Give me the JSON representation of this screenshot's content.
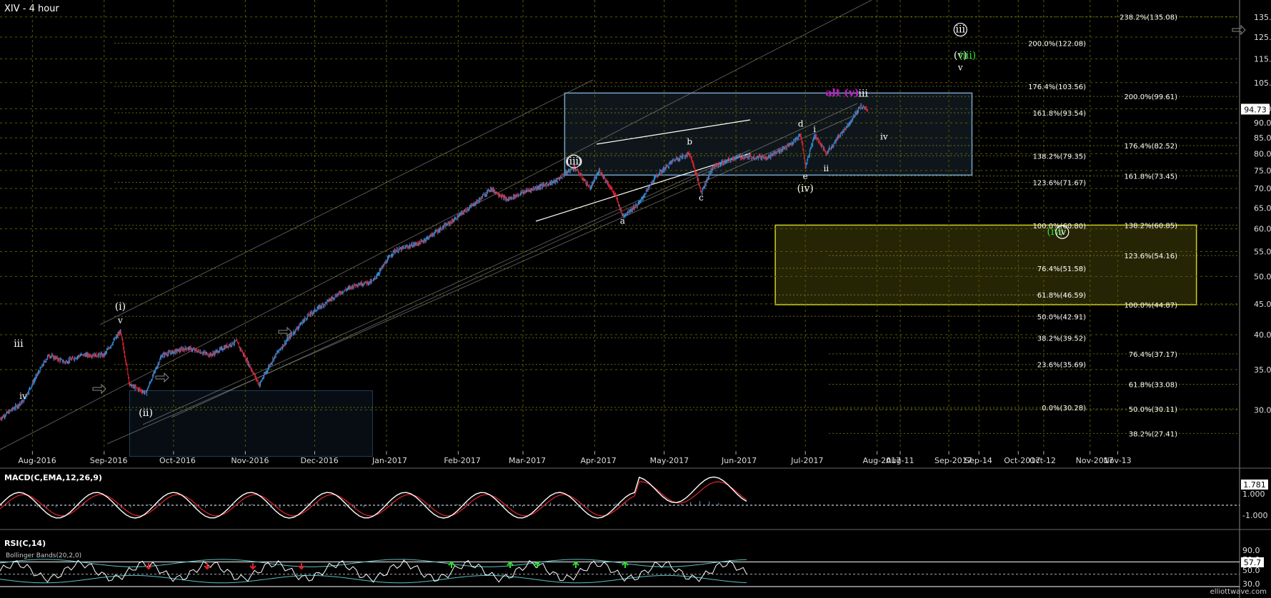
{
  "title": "XIV - 4 hour",
  "watermark": "elliottwave.com",
  "chart_data": [
    {
      "type": "candlestick",
      "title": "XIV - 4 hour",
      "y_axis": {
        "range": [
          22,
          140
        ],
        "ticks": [
          30,
          35,
          40,
          45,
          50,
          55,
          60,
          65,
          70,
          75,
          80,
          85,
          90,
          95,
          105,
          115,
          125,
          135
        ],
        "position": "right"
      },
      "x_axis": {
        "ticks": [
          "Aug-2016",
          "Sep-2016",
          "Oct-2016",
          "Nov-2016",
          "Dec-2016",
          "Jan-2017",
          "Feb-2017",
          "Mar-2017",
          "Apr-2017",
          "May-2017",
          "Jun-2017",
          "Jul-2017",
          "Aug-2017",
          "Aug-11",
          "Sep-2017",
          "Sep-14",
          "Oct-2017",
          "Oct-12",
          "Nov-2017",
          "Nov-13"
        ]
      },
      "price_path": [
        [
          "2016-07-18",
          29
        ],
        [
          "2016-07-28",
          31
        ],
        [
          "2016-08-08",
          37
        ],
        [
          "2016-08-15",
          36
        ],
        [
          "2016-08-22",
          37
        ],
        [
          "2016-09-01",
          37
        ],
        [
          "2016-09-08",
          40.5
        ],
        [
          "2016-09-12",
          33
        ],
        [
          "2016-09-19",
          32
        ],
        [
          "2016-09-26",
          37
        ],
        [
          "2016-10-07",
          38
        ],
        [
          "2016-10-17",
          37
        ],
        [
          "2016-10-28",
          39
        ],
        [
          "2016-11-07",
          33
        ],
        [
          "2016-11-14",
          37
        ],
        [
          "2016-11-28",
          43
        ],
        [
          "2016-12-05",
          45
        ],
        [
          "2016-12-12",
          47
        ],
        [
          "2016-12-19",
          48.5
        ],
        [
          "2016-12-26",
          49
        ],
        [
          "2017-01-04",
          55
        ],
        [
          "2017-01-16",
          57
        ],
        [
          "2017-01-30",
          62
        ],
        [
          "2017-02-10",
          67
        ],
        [
          "2017-02-15",
          70
        ],
        [
          "2017-02-22",
          67
        ],
        [
          "2017-03-01",
          69
        ],
        [
          "2017-03-15",
          72
        ],
        [
          "2017-03-23",
          76
        ],
        [
          "2017-03-30",
          70
        ],
        [
          "2017-04-03",
          75
        ],
        [
          "2017-04-10",
          68
        ],
        [
          "2017-04-13",
          63
        ],
        [
          "2017-04-20",
          66
        ],
        [
          "2017-04-27",
          73
        ],
        [
          "2017-05-05",
          78
        ],
        [
          "2017-05-12",
          80
        ],
        [
          "2017-05-17",
          69
        ],
        [
          "2017-05-22",
          76
        ],
        [
          "2017-06-01",
          79
        ],
        [
          "2017-06-15",
          79
        ],
        [
          "2017-06-25",
          83
        ],
        [
          "2017-06-29",
          86
        ],
        [
          "2017-07-01",
          76
        ],
        [
          "2017-07-05",
          86
        ],
        [
          "2017-07-10",
          80
        ],
        [
          "2017-07-14",
          84
        ],
        [
          "2017-07-20",
          90
        ],
        [
          "2017-07-25",
          96
        ],
        [
          "2017-07-28",
          94.73
        ]
      ],
      "last_price": "94.73",
      "fib_levels": [
        {
          "label": "238.2%(135.08)",
          "value": 135.08,
          "col": "right"
        },
        {
          "label": "200.0%(122.08)",
          "value": 122.08,
          "col": "left"
        },
        {
          "label": "176.4%(103.56)",
          "value": 103.56,
          "col": "left"
        },
        {
          "label": "200.0%(99.61)",
          "value": 99.61,
          "col": "right"
        },
        {
          "label": "161.8%(93.54)",
          "value": 93.54,
          "col": "left"
        },
        {
          "label": "176.4%(82.52)",
          "value": 82.52,
          "col": "right"
        },
        {
          "label": "138.2%(79.35)",
          "value": 79.35,
          "col": "left"
        },
        {
          "label": "161.8%(73.45)",
          "value": 73.45,
          "col": "right"
        },
        {
          "label": "123.6%(71.67)",
          "value": 71.67,
          "col": "left"
        },
        {
          "label": "100.0%(60.80)",
          "value": 60.8,
          "col": "left"
        },
        {
          "label": "138.2%(60.85)",
          "value": 60.85,
          "col": "right"
        },
        {
          "label": "123.6%(54.16)",
          "value": 54.16,
          "col": "right"
        },
        {
          "label": "76.4%(51.58)",
          "value": 51.58,
          "col": "left"
        },
        {
          "label": "61.8%(46.59)",
          "value": 46.59,
          "col": "left"
        },
        {
          "label": "100.0%(44.87)",
          "value": 44.87,
          "col": "right"
        },
        {
          "label": "50.0%(42.91)",
          "value": 42.91,
          "col": "left"
        },
        {
          "label": "38.2%(39.52)",
          "value": 39.52,
          "col": "left"
        },
        {
          "label": "76.4%(37.17)",
          "value": 37.17,
          "col": "right"
        },
        {
          "label": "23.6%(35.69)",
          "value": 35.69,
          "col": "left"
        },
        {
          "label": "61.8%(33.08)",
          "value": 33.08,
          "col": "right"
        },
        {
          "label": "0.0%(30.28)",
          "value": 30.28,
          "col": "left"
        },
        {
          "label": "50.0%(30.11)",
          "value": 30.11,
          "col": "right"
        },
        {
          "label": "38.2%(27.41)",
          "value": 27.41,
          "col": "right"
        }
      ],
      "wave_labels": [
        {
          "text": "(i)",
          "date": "2016-09-08",
          "value": 44,
          "color": "#ffffff",
          "circled": false
        },
        {
          "text": "v",
          "date": "2016-09-08",
          "value": 41.8,
          "color": "#ffffff",
          "circled": false
        },
        {
          "text": "iii",
          "date": "2016-07-26",
          "value": 38.2,
          "color": "#ffffff",
          "circled": false
        },
        {
          "text": "iv",
          "date": "2016-07-28",
          "value": 31.3,
          "color": "#ffffff",
          "circled": false
        },
        {
          "text": "(ii)",
          "date": "2016-09-19",
          "value": 29.3,
          "color": "#ffffff",
          "circled": false
        },
        {
          "text": "(iii)",
          "date": "2017-03-23",
          "value": 76.8,
          "color": "#ffffff",
          "circled": true
        },
        {
          "text": "a",
          "date": "2017-04-13",
          "value": 61.2,
          "color": "#ffffff",
          "circled": false
        },
        {
          "text": "b",
          "date": "2017-05-12",
          "value": 82.8,
          "color": "#ffffff",
          "circled": false
        },
        {
          "text": "c",
          "date": "2017-05-17",
          "value": 66.9,
          "color": "#ffffff",
          "circled": false
        },
        {
          "text": "d",
          "date": "2017-06-29",
          "value": 88.7,
          "color": "#ffffff",
          "circled": false
        },
        {
          "text": "e",
          "date": "2017-07-01",
          "value": 72.6,
          "color": "#ffffff",
          "circled": false
        },
        {
          "text": "(iv)",
          "date": "2017-07-01",
          "value": 69.2,
          "color": "#ffffff",
          "circled": false
        },
        {
          "text": "i",
          "date": "2017-07-05",
          "value": 86.9,
          "color": "#ffffff",
          "circled": false
        },
        {
          "text": "ii",
          "date": "2017-07-10",
          "value": 74.8,
          "color": "#ffffff",
          "circled": false
        },
        {
          "text": "iii",
          "date": "2017-07-26",
          "value": 99.5,
          "color": "#ffffff",
          "circled": false
        },
        {
          "text": "iv",
          "date": "2017-08-04",
          "value": 84.5,
          "color": "#ffffff",
          "circled": false
        },
        {
          "text": "alt (v)",
          "date": "2017-07-17",
          "value": 99.8,
          "color": "#d01ad0",
          "circled": false
        },
        {
          "text": "iii",
          "date": "2017-09-06",
          "value": 127.2,
          "color": "#ffffff",
          "circled": true
        },
        {
          "text": "(v)",
          "date": "2017-09-06",
          "value": 115.1,
          "color": "#ffffff",
          "circled": false
        },
        {
          "text": "(iii)",
          "date": "2017-09-09",
          "value": 115.1,
          "color": "#2fe02f",
          "circled": false
        },
        {
          "text": "v",
          "date": "2017-09-06",
          "value": 110.1,
          "color": "#ffffff",
          "circled": false
        },
        {
          "text": "(iv)",
          "date": "2017-10-17",
          "value": 58.6,
          "color": "#2fe02f",
          "circled": false
        },
        {
          "text": "iv",
          "date": "2017-10-20",
          "value": 58.6,
          "color": "#ffffff",
          "circled": true
        }
      ],
      "zones": [
        {
          "name": "target-box",
          "from": "2017-03-19",
          "to": "2017-09-11",
          "top": 100.9,
          "bottom": 73.7,
          "color": "#7fb6e0"
        },
        {
          "name": "support-box",
          "from": "2017-06-18",
          "to": "2017-12-17",
          "top": 60.85,
          "bottom": 44.87,
          "color": "#e6e623"
        },
        {
          "name": "low-box",
          "from": "2016-09-12",
          "to": "2016-12-26",
          "top": 32.3,
          "bottom": 25.1,
          "color": "#3a6a9a"
        }
      ]
    },
    {
      "type": "line",
      "title": "MACD(C,EMA,12,26,9)",
      "y_axis": {
        "ticks": [
          "1.000",
          "-1.000"
        ]
      },
      "last_value": "1.781"
    },
    {
      "type": "line",
      "title": "RSI(C,14)",
      "overlay": "Bollinger Bands(20,2,0)",
      "y_axis": {
        "ticks": [
          "90.0",
          "70.0",
          "50.0",
          "30.0"
        ]
      },
      "last_value": "57.7"
    }
  ]
}
